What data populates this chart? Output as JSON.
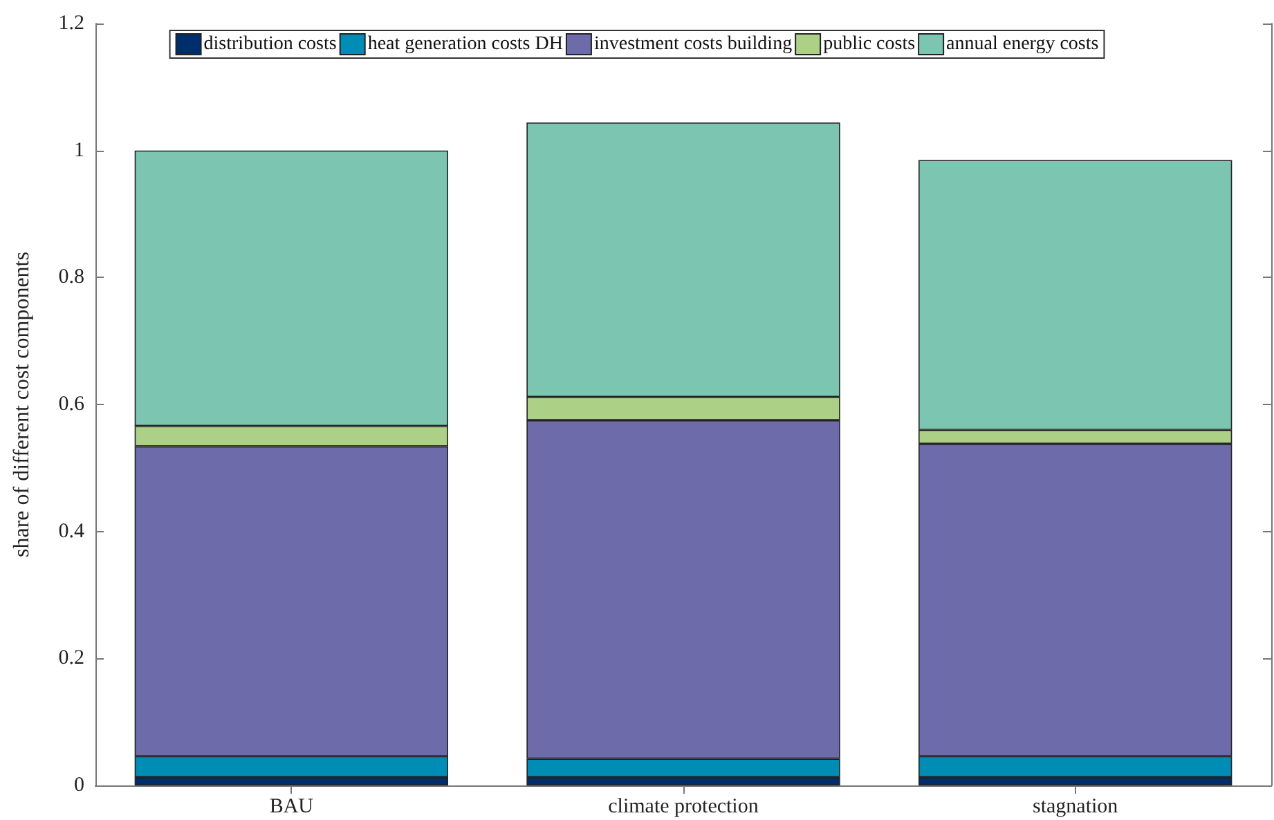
{
  "chart_data": {
    "type": "bar",
    "stacked": true,
    "ylabel": "share of different cost components",
    "categories": [
      "BAU",
      "climate protection",
      "stagnation"
    ],
    "series": [
      {
        "name": "distribution costs",
        "color": "#002d6b",
        "values": [
          0.013,
          0.013,
          0.013
        ]
      },
      {
        "name": "heat generation costs DH",
        "color": "#008db5",
        "values": [
          0.033,
          0.029,
          0.033
        ]
      },
      {
        "name": "investment costs building",
        "color": "#6e6bab",
        "values": [
          0.488,
          0.533,
          0.492
        ]
      },
      {
        "name": "public costs",
        "color": "#acd086",
        "values": [
          0.032,
          0.037,
          0.022
        ]
      },
      {
        "name": "annual energy costs",
        "color": "#7cc5b1",
        "values": [
          0.434,
          0.432,
          0.425
        ]
      }
    ],
    "ylim": [
      0,
      1.2
    ],
    "yticks": [
      0,
      0.2,
      0.4,
      0.6,
      0.8,
      1,
      1.2
    ],
    "grid": false,
    "legend": "top"
  }
}
